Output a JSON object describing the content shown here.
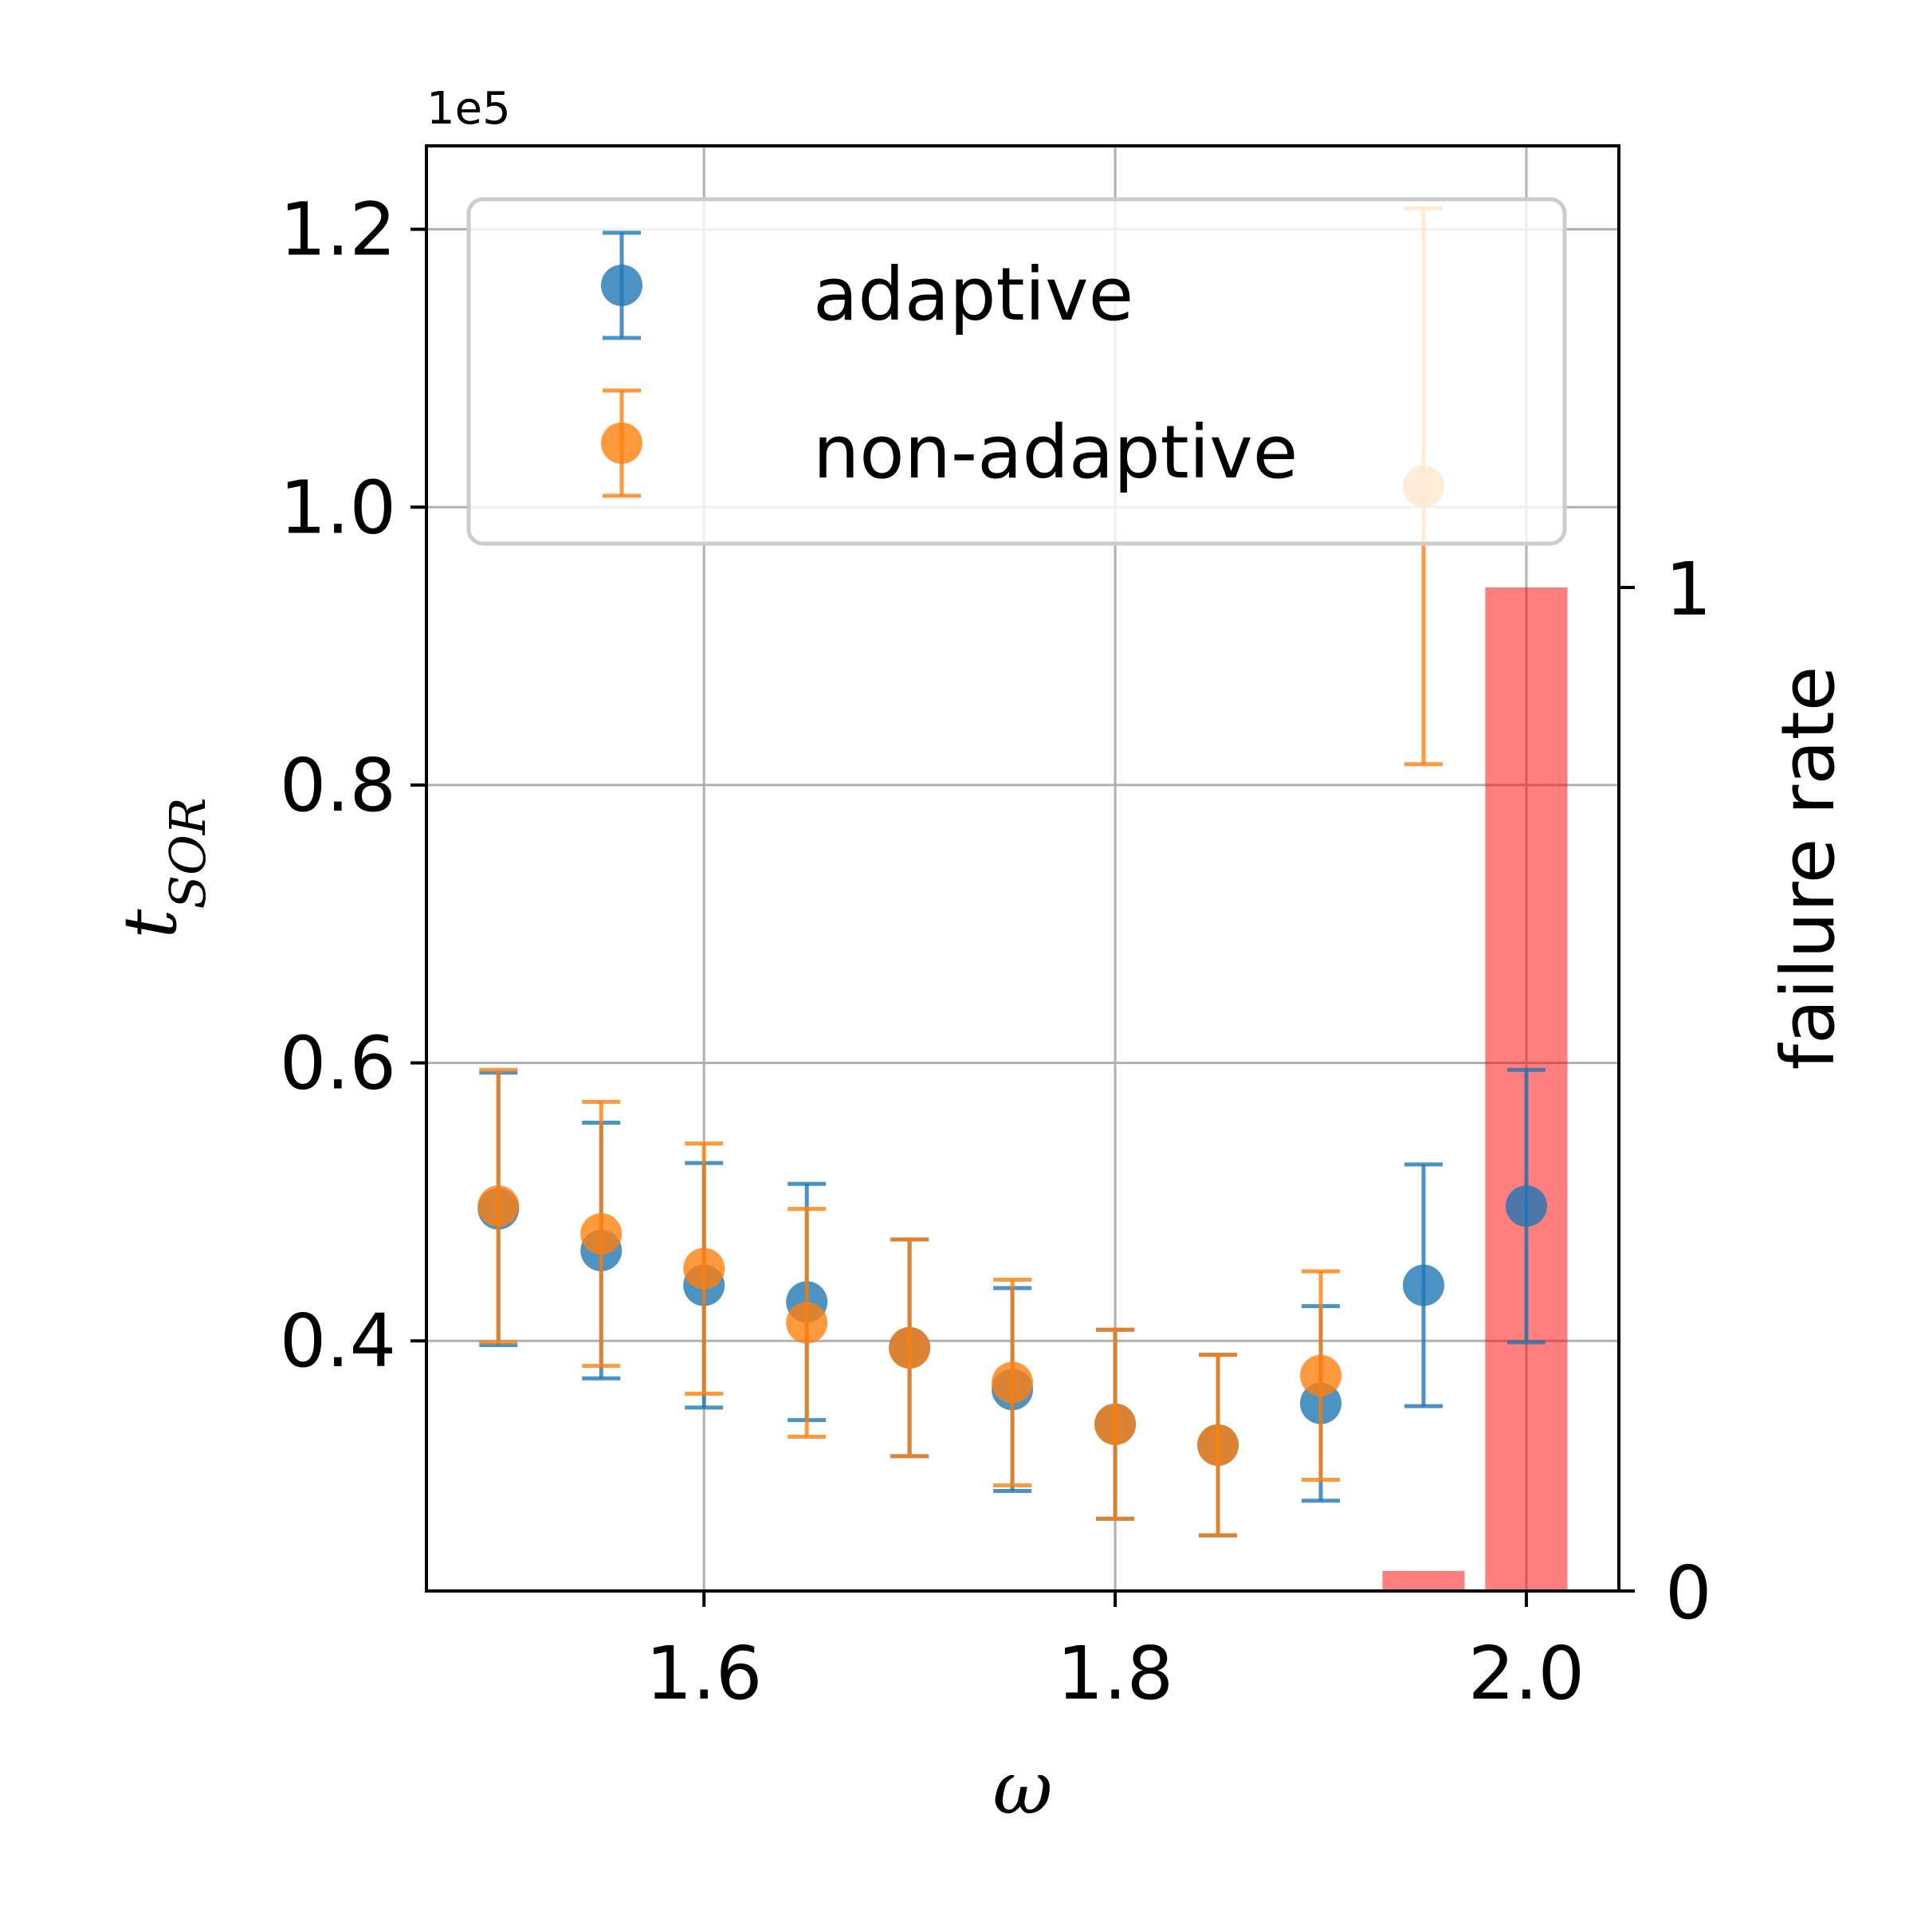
{
  "chart_data": {
    "type": "scatter",
    "xlabel": "ω",
    "ylabel_main": "t",
    "ylabel_sub": "SOR",
    "y_offset_text": "1e5",
    "y2label": "failure rate",
    "xlim": [
      1.465,
      2.045
    ],
    "ylim": [
      0.22,
      1.26
    ],
    "y2lim": [
      0,
      1.44
    ],
    "x_ticks": [
      1.6,
      1.8,
      2.0
    ],
    "x_tick_labels": [
      "1.6",
      "1.8",
      "2.0"
    ],
    "y_ticks": [
      0.4,
      0.6,
      0.8,
      1.0,
      1.2
    ],
    "y_tick_labels": [
      "0.4",
      "0.6",
      "0.8",
      "1.0",
      "1.2"
    ],
    "y2_ticks": [
      0,
      1
    ],
    "y2_tick_labels": [
      "0",
      "1"
    ],
    "grid": true,
    "legend_position": "upper",
    "series": [
      {
        "name": "adaptive",
        "color": "#1f77b4",
        "x": [
          1.5,
          1.55,
          1.6,
          1.65,
          1.7,
          1.75,
          1.8,
          1.85,
          1.9,
          1.95,
          2.0
        ],
        "y": [
          0.495,
          0.465,
          0.44,
          0.428,
          0.395,
          0.365,
          0.34,
          0.325,
          0.355,
          0.44,
          0.497
        ],
        "err": [
          0.098,
          0.092,
          0.088,
          0.085,
          0.078,
          0.073,
          0.068,
          0.065,
          0.07,
          0.087,
          0.098
        ]
      },
      {
        "name": "non-adaptive",
        "color": "#ff7f0e",
        "x": [
          1.5,
          1.55,
          1.6,
          1.65,
          1.7,
          1.75,
          1.8,
          1.85,
          1.9,
          1.95
        ],
        "y": [
          0.497,
          0.477,
          0.452,
          0.413,
          0.395,
          0.37,
          0.34,
          0.325,
          0.375,
          1.015
        ],
        "err": [
          0.098,
          0.095,
          0.09,
          0.082,
          0.078,
          0.074,
          0.068,
          0.065,
          0.075,
          0.2
        ]
      }
    ],
    "failure_rate": {
      "color": "#ff0000",
      "x": [
        1.95,
        2.0
      ],
      "values": [
        0.02,
        1.0
      ]
    }
  }
}
